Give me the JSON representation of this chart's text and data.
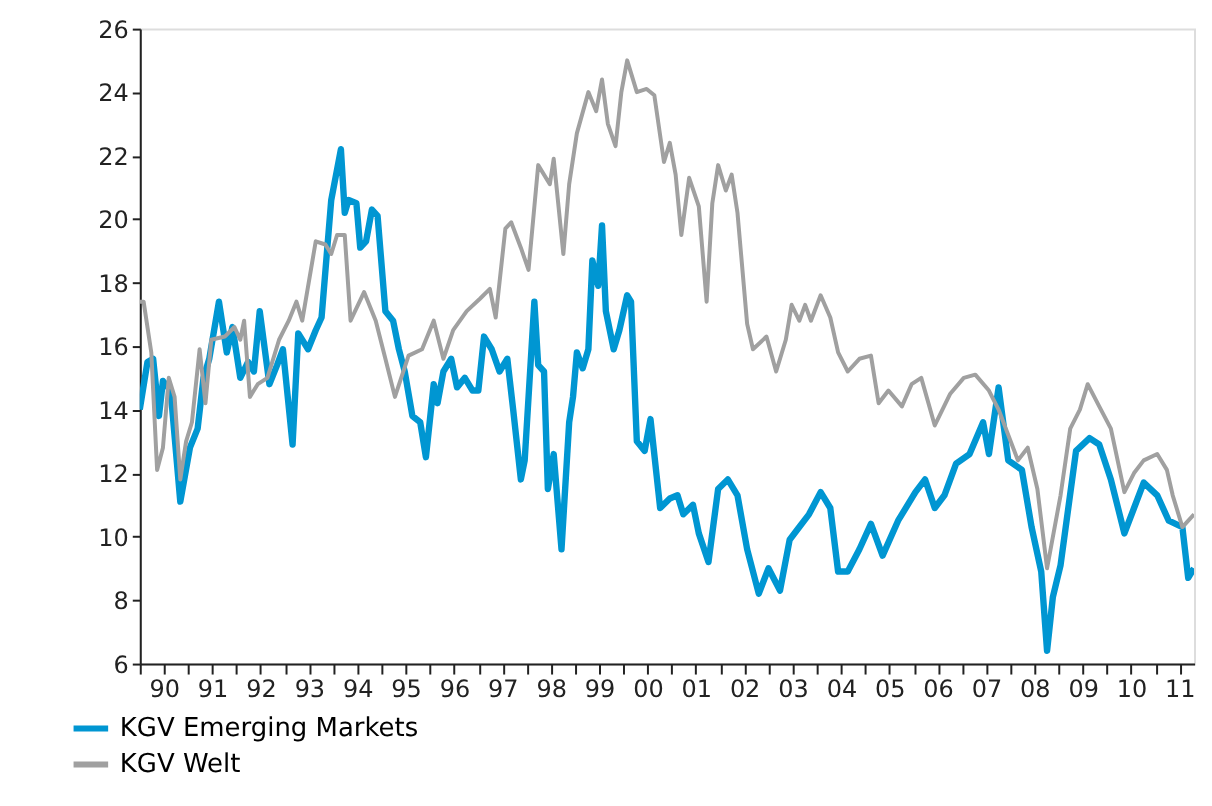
{
  "chart_data": {
    "type": "line",
    "xlim": [
      "1990-01-01",
      "2011-10-20"
    ],
    "ylim": [
      6,
      26
    ],
    "yticks": [
      6,
      8,
      10,
      12,
      14,
      16,
      18,
      20,
      22,
      24,
      26
    ],
    "xticks": [
      {
        "value": "1990",
        "label": null
      },
      {
        "value": "1990-07-01",
        "label": "90"
      },
      {
        "value": "1991",
        "label": null
      },
      {
        "value": "1991-07-01",
        "label": "91"
      },
      {
        "value": "1992",
        "label": null
      },
      {
        "value": "1992-07-01",
        "label": "92"
      },
      {
        "value": "1993",
        "label": null
      },
      {
        "value": "1993-07-01",
        "label": "93"
      },
      {
        "value": "1994",
        "label": null
      },
      {
        "value": "1994-07-01",
        "label": "94"
      },
      {
        "value": "1995",
        "label": null
      },
      {
        "value": "1995-07-01",
        "label": "95"
      },
      {
        "value": "1996",
        "label": null
      },
      {
        "value": "1996-07-01",
        "label": "96"
      },
      {
        "value": "1997",
        "label": null
      },
      {
        "value": "1997-07-01",
        "label": "97"
      },
      {
        "value": "1998",
        "label": null
      },
      {
        "value": "1998-07-01",
        "label": "98"
      },
      {
        "value": "1999",
        "label": null
      },
      {
        "value": "1999-07-01",
        "label": "99"
      },
      {
        "value": "2000",
        "label": null
      },
      {
        "value": "2000-07-01",
        "label": "00"
      },
      {
        "value": "2001",
        "label": null
      },
      {
        "value": "2001-07-01",
        "label": "01"
      },
      {
        "value": "2002",
        "label": null
      },
      {
        "value": "2002-07-01",
        "label": "02"
      },
      {
        "value": "2003",
        "label": null
      },
      {
        "value": "2003-07-01",
        "label": "03"
      },
      {
        "value": "2004",
        "label": null
      },
      {
        "value": "2004-07-01",
        "label": "04"
      },
      {
        "value": "2005",
        "label": null
      },
      {
        "value": "2005-07-01",
        "label": "05"
      },
      {
        "value": "2006",
        "label": null
      },
      {
        "value": "2006-07-01",
        "label": "06"
      },
      {
        "value": "2007",
        "label": null
      },
      {
        "value": "2007-07-01",
        "label": "07"
      },
      {
        "value": "2008",
        "label": null
      },
      {
        "value": "2008-07-01",
        "label": "08"
      },
      {
        "value": "2009",
        "label": null
      },
      {
        "value": "2009-07-01",
        "label": "09"
      },
      {
        "value": "2010",
        "label": null
      },
      {
        "value": "2010-07-01",
        "label": "10"
      },
      {
        "value": "2011",
        "label": null
      },
      {
        "value": "2011-07-01",
        "label": "11"
      }
    ],
    "grid": false,
    "legend": "bottom",
    "marker": "none",
    "line_style": "solid",
    "series": [
      {
        "name": "KGV Emerging Markets",
        "color": "#0096d2",
        "x": [
          "1990-01-01",
          "1990-02-28",
          "1990-04-12",
          "1990-05-26",
          "1990-06-25",
          "1990-08-22",
          "1990-11-03",
          "1991-01-15",
          "1991-03-14",
          "1991-04-27",
          "1991-06-10",
          "1991-08-22",
          "1991-10-20",
          "1991-12-02",
          "1992-01-30",
          "1992-03-29",
          "1992-05-12",
          "1992-06-25",
          "1992-09-06",
          "1992-11-03",
          "1992-12-17",
          "1993-02-28",
          "1993-04-12",
          "1993-06-25",
          "1993-08-22",
          "1993-10-05",
          "1993-12-17",
          "1994-02-28",
          "1994-03-29",
          "1994-04-27",
          "1994-06-25",
          "1994-07-24",
          "1994-09-06",
          "1994-10-20",
          "1994-12-02",
          "1995-01-30",
          "1995-03-29",
          "1995-05-12",
          "1995-06-25",
          "1995-08-22",
          "1995-10-20",
          "1995-12-02",
          "1996-01-30",
          "1996-02-28",
          "1996-04-12",
          "1996-06-10",
          "1996-07-24",
          "1996-09-21",
          "1996-11-18",
          "1997-01-01",
          "1997-02-13",
          "1997-04-12",
          "1997-06-10",
          "1997-08-08",
          "1997-09-21",
          "1997-11-18",
          "1997-12-17",
          "1998-02-28",
          "1998-03-29",
          "1998-05-12",
          "1998-06-10",
          "1998-07-24",
          "1998-09-21",
          "1998-11-18",
          "1998-12-17",
          "1999-01-15",
          "1999-02-28",
          "1999-04-12",
          "1999-05-12",
          "1999-06-25",
          "1999-07-24",
          "1999-08-22",
          "1999-10-20",
          "1999-12-02",
          "2000-01-30",
          "2000-02-28",
          "2000-04-12",
          "2000-06-10",
          "2000-07-24",
          "2000-10-05",
          "2000-12-17",
          "2001-02-13",
          "2001-03-29",
          "2001-06-10",
          "2001-07-24",
          "2001-10-05",
          "2001-12-17",
          "2002-02-28",
          "2002-05-12",
          "2002-07-24",
          "2002-10-20",
          "2003-01-01",
          "2003-03-29",
          "2003-06-10",
          "2003-08-22",
          "2003-11-03",
          "2004-01-30",
          "2004-04-12",
          "2004-06-10",
          "2004-08-22",
          "2004-11-18",
          "2005-02-13",
          "2005-05-12",
          "2005-09-06",
          "2006-01-15",
          "2006-03-29",
          "2006-06-10",
          "2006-08-22",
          "2006-11-18",
          "2007-02-28",
          "2007-06-10",
          "2007-07-24",
          "2007-10-05",
          "2007-12-17",
          "2008-03-29",
          "2008-06-10",
          "2008-08-22",
          "2008-10-05",
          "2008-11-18",
          "2009-01-15",
          "2009-05-12",
          "2009-08-22",
          "2009-11-03",
          "2010-01-30",
          "2010-05-12",
          "2010-07-24",
          "2010-10-05",
          "2011-01-15",
          "2011-04-12",
          "2011-07-24",
          "2011-09-06",
          "2011-10-20"
        ],
        "values": [
          14.0,
          15.5,
          15.6,
          13.8,
          14.9,
          14.6,
          11.1,
          12.8,
          13.4,
          15.0,
          15.6,
          17.4,
          15.8,
          16.6,
          15.0,
          15.5,
          15.2,
          17.1,
          14.8,
          15.4,
          15.9,
          12.9,
          16.4,
          15.9,
          16.5,
          16.9,
          20.6,
          22.2,
          20.2,
          20.6,
          20.5,
          19.1,
          19.3,
          20.3,
          20.1,
          17.1,
          16.8,
          15.9,
          15.2,
          13.8,
          13.6,
          12.5,
          14.8,
          14.2,
          15.2,
          15.6,
          14.7,
          15.0,
          14.6,
          14.6,
          16.3,
          15.9,
          15.2,
          15.6,
          14.0,
          11.8,
          12.4,
          17.4,
          15.4,
          15.2,
          11.5,
          12.6,
          9.6,
          13.6,
          14.4,
          15.8,
          15.3,
          15.9,
          18.7,
          17.9,
          19.8,
          17.1,
          15.9,
          16.5,
          17.6,
          17.4,
          13.0,
          12.7,
          13.7,
          10.9,
          11.2,
          11.3,
          10.7,
          11.0,
          10.1,
          9.2,
          11.5,
          11.8,
          11.3,
          9.6,
          8.2,
          9.0,
          8.3,
          9.9,
          10.3,
          10.7,
          11.4,
          10.9,
          8.9,
          8.9,
          9.6,
          10.4,
          9.4,
          10.5,
          11.4,
          11.8,
          10.9,
          11.3,
          12.3,
          12.6,
          13.6,
          12.6,
          14.7,
          12.4,
          12.1,
          10.3,
          8.9,
          6.4,
          8.1,
          9.1,
          12.7,
          13.1,
          12.9,
          11.8,
          10.1,
          10.9,
          11.7,
          11.3,
          10.5,
          10.3,
          8.7,
          9.0
        ]
      },
      {
        "name": "KGV Welt",
        "color": "#a0a0a0",
        "x": [
          "1990-01-01",
          "1990-01-30",
          "1990-03-29",
          "1990-05-12",
          "1990-06-25",
          "1990-08-08",
          "1990-09-21",
          "1990-11-03",
          "1990-12-17",
          "1991-01-30",
          "1991-03-29",
          "1991-05-12",
          "1991-06-25",
          "1991-10-05",
          "1991-12-17",
          "1992-01-30",
          "1992-02-28",
          "1992-04-12",
          "1992-06-10",
          "1992-08-22",
          "1992-11-18",
          "1993-01-30",
          "1993-03-29",
          "1993-05-12",
          "1993-08-22",
          "1993-11-03",
          "1993-12-17",
          "1994-01-30",
          "1994-03-29",
          "1994-05-12",
          "1994-08-22",
          "1994-11-18",
          "1995-01-30",
          "1995-04-12",
          "1995-07-24",
          "1995-11-03",
          "1996-01-30",
          "1996-04-12",
          "1996-06-25",
          "1996-10-05",
          "1997-01-15",
          "1997-03-29",
          "1997-05-12",
          "1997-07-24",
          "1997-09-06",
          "1997-11-18",
          "1998-01-15",
          "1998-03-29",
          "1998-06-25",
          "1998-07-24",
          "1998-10-05",
          "1998-11-18",
          "1999-01-15",
          "1999-04-12",
          "1999-06-10",
          "1999-07-24",
          "1999-09-06",
          "1999-11-03",
          "1999-12-17",
          "2000-01-30",
          "2000-04-12",
          "2000-06-25",
          "2000-08-22",
          "2000-11-03",
          "2000-12-17",
          "2001-01-30",
          "2001-03-14",
          "2001-05-12",
          "2001-07-24",
          "2001-09-21",
          "2001-11-03",
          "2001-12-17",
          "2002-02-13",
          "2002-03-29",
          "2002-05-12",
          "2002-07-24",
          "2002-09-06",
          "2002-12-17",
          "2003-02-28",
          "2003-05-12",
          "2003-06-25",
          "2003-08-22",
          "2003-10-05",
          "2003-11-18",
          "2004-01-30",
          "2004-04-12",
          "2004-06-10",
          "2004-08-22",
          "2004-11-18",
          "2005-02-13",
          "2005-04-12",
          "2005-06-25",
          "2005-10-05",
          "2005-12-17",
          "2006-02-28",
          "2006-06-10",
          "2006-10-05",
          "2007-01-15",
          "2007-04-12",
          "2007-07-24",
          "2007-10-05",
          "2007-12-17",
          "2008-02-28",
          "2008-05-12",
          "2008-07-24",
          "2008-10-05",
          "2009-01-15",
          "2009-03-29",
          "2009-06-10",
          "2009-08-08",
          "2009-11-03",
          "2010-01-30",
          "2010-05-12",
          "2010-07-24",
          "2010-10-05",
          "2011-01-15",
          "2011-03-29",
          "2011-05-12",
          "2011-07-24",
          "2011-10-20"
        ],
        "values": [
          17.4,
          17.4,
          15.8,
          12.1,
          12.8,
          15.0,
          14.4,
          11.8,
          13.0,
          13.6,
          15.9,
          14.2,
          16.2,
          16.3,
          16.6,
          16.2,
          16.8,
          14.4,
          14.8,
          15.0,
          16.2,
          16.8,
          17.4,
          16.8,
          19.3,
          19.2,
          18.9,
          19.5,
          19.5,
          16.8,
          17.7,
          16.8,
          15.6,
          14.4,
          15.7,
          15.9,
          16.8,
          15.6,
          16.5,
          17.1,
          17.5,
          17.8,
          16.9,
          19.7,
          19.9,
          19.1,
          18.4,
          21.7,
          21.1,
          21.9,
          18.9,
          21.1,
          22.7,
          24.0,
          23.4,
          24.4,
          23.0,
          22.3,
          24.0,
          25.0,
          24.0,
          24.1,
          23.9,
          21.8,
          22.4,
          21.4,
          19.5,
          21.3,
          20.4,
          17.4,
          20.5,
          21.7,
          20.9,
          21.4,
          20.2,
          16.7,
          15.9,
          16.3,
          15.2,
          16.2,
          17.3,
          16.8,
          17.3,
          16.8,
          17.6,
          16.9,
          15.8,
          15.2,
          15.6,
          15.7,
          14.2,
          14.6,
          14.1,
          14.8,
          15.0,
          13.5,
          14.5,
          15.0,
          15.1,
          14.6,
          14.0,
          13.2,
          12.4,
          12.8,
          11.5,
          9.0,
          11.3,
          13.4,
          14.0,
          14.8,
          14.1,
          13.4,
          11.4,
          12.0,
          12.4,
          12.6,
          12.1,
          11.3,
          10.3,
          10.7
        ]
      }
    ]
  }
}
